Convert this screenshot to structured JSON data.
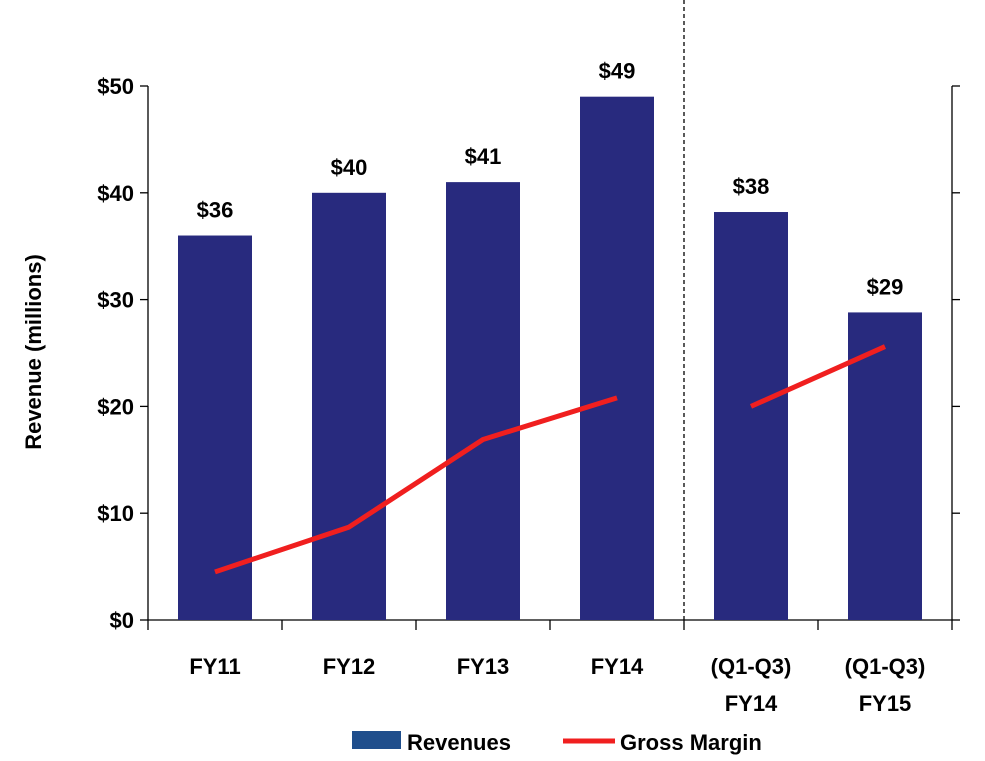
{
  "chart_data": {
    "type": "bar",
    "categories": [
      [
        "FY11"
      ],
      [
        "FY12"
      ],
      [
        "FY13"
      ],
      [
        "FY14"
      ],
      [
        "(Q1-Q3)",
        "FY14"
      ],
      [
        "(Q1-Q3)",
        "FY15"
      ]
    ],
    "series": [
      {
        "name": "Revenues",
        "type": "bar",
        "color": "#282a7e",
        "values": [
          36,
          40,
          41,
          49,
          38.2,
          28.8
        ],
        "labels": [
          "$36",
          "$40",
          "$41",
          "$49",
          "$38",
          "$29"
        ]
      },
      {
        "name": "Gross Margin",
        "type": "line",
        "color": "#f01f1f",
        "segments": [
          {
            "x": [
              0,
              1,
              2,
              3
            ],
            "y": [
              4.5,
              8.7,
              16.9,
              20.8
            ]
          },
          {
            "x": [
              4,
              5
            ],
            "y": [
              20.0,
              25.6
            ]
          }
        ]
      }
    ],
    "ylabel": "Revenue (millions)",
    "ylim": [
      0,
      50
    ],
    "yticks": [
      0,
      10,
      20,
      30,
      40,
      50
    ],
    "ytick_labels": [
      "$0",
      "$10",
      "$20",
      "$30",
      "$40",
      "$50"
    ],
    "secondary_axis": "right (unlabeled)",
    "separator": "dashed vertical line between FY14 and (Q1-Q3) FY14",
    "legend": {
      "position": "bottom-center"
    },
    "grid": false
  }
}
